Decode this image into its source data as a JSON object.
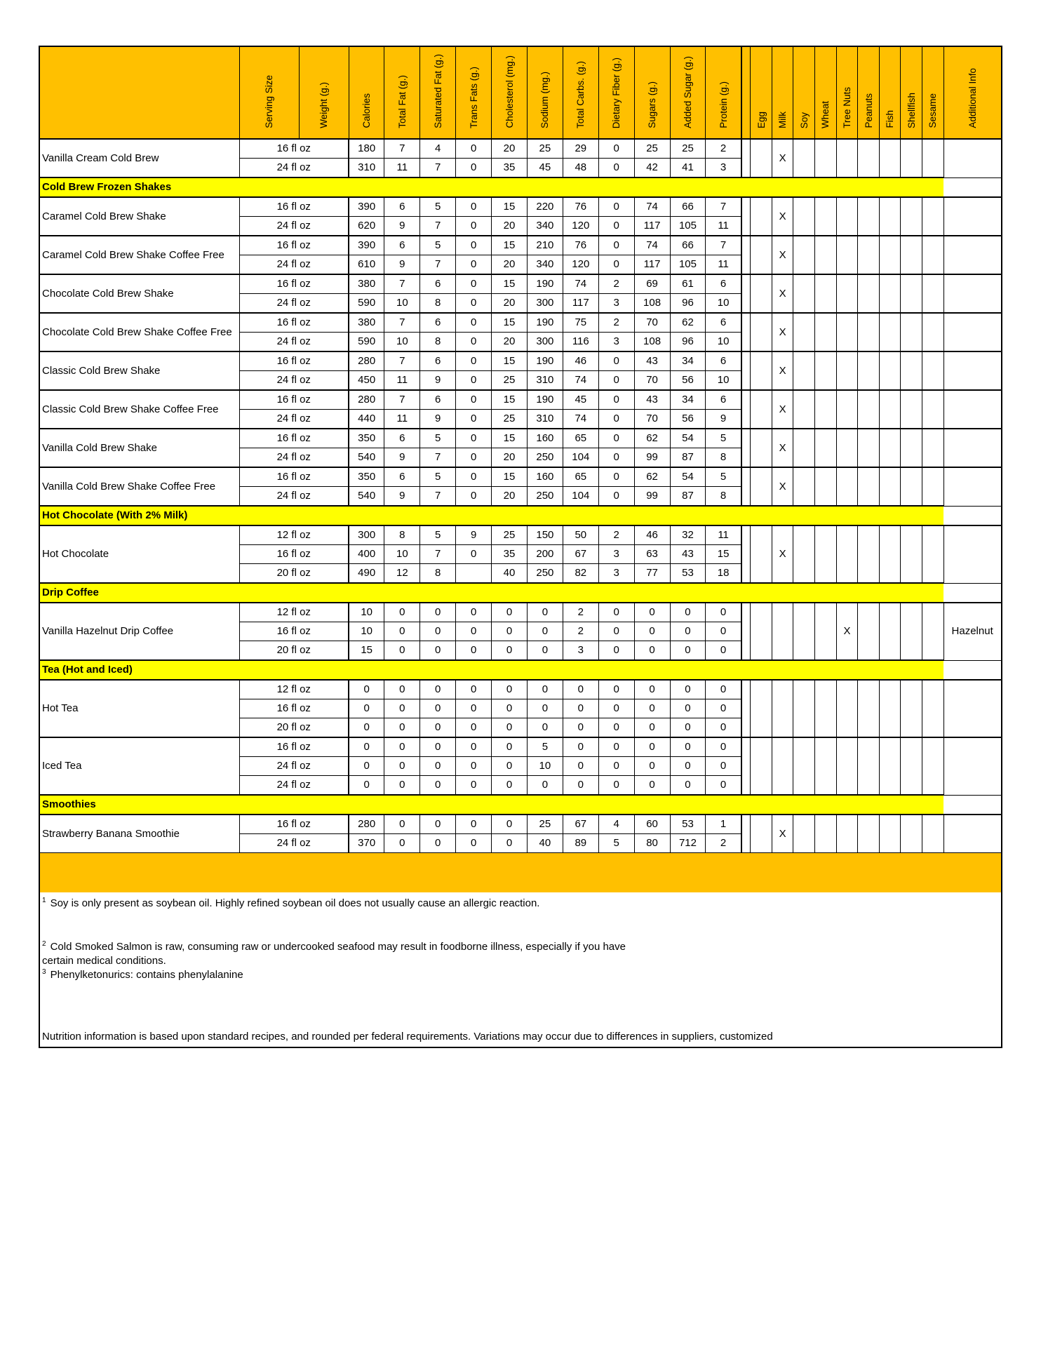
{
  "columns": {
    "name": "",
    "serving_size": "Serving Size",
    "weight": "Weight (g.)",
    "nutrients": [
      "Calories",
      "Total Fat (g.)",
      "Saturated Fat (g.)",
      "Trans Fats (g.)",
      "Cholesterol (mg.)",
      "Sodium (mg.)",
      "Total Carbs. (g.)",
      "Dietary Fiber (g.)",
      "Sugars (g.)",
      "Added Sugar (g.)",
      "Protein (g.)"
    ],
    "allergens": [
      "Egg",
      "Milk",
      "Soy",
      "Wheat",
      "Tree Nuts",
      "Peanuts",
      "Fish",
      "Shellfish",
      "Sesame"
    ],
    "additional": "Additional Info"
  },
  "sections": [
    {
      "title": "",
      "items": [
        {
          "name": "Vanilla Cream Cold Brew",
          "allergens": [
            "",
            "X",
            "",
            "",
            "",
            "",
            "",
            "",
            ""
          ],
          "additional": "",
          "rows": [
            {
              "size": "16 fl oz",
              "values": [
                "180",
                "7",
                "4",
                "0",
                "20",
                "25",
                "29",
                "0",
                "25",
                "25",
                "2"
              ]
            },
            {
              "size": "24 fl oz",
              "values": [
                "310",
                "11",
                "7",
                "0",
                "35",
                "45",
                "48",
                "0",
                "42",
                "41",
                "3"
              ]
            }
          ]
        }
      ]
    },
    {
      "title": "Cold Brew Frozen Shakes",
      "items": [
        {
          "name": "Caramel Cold Brew Shake",
          "allergens": [
            "",
            "X",
            "",
            "",
            "",
            "",
            "",
            "",
            ""
          ],
          "additional": "",
          "rows": [
            {
              "size": "16 fl oz",
              "values": [
                "390",
                "6",
                "5",
                "0",
                "15",
                "220",
                "76",
                "0",
                "74",
                "66",
                "7"
              ]
            },
            {
              "size": "24 fl oz",
              "values": [
                "620",
                "9",
                "7",
                "0",
                "20",
                "340",
                "120",
                "0",
                "117",
                "105",
                "11"
              ]
            }
          ]
        },
        {
          "name": "Caramel Cold Brew Shake Coffee Free",
          "allergens": [
            "",
            "X",
            "",
            "",
            "",
            "",
            "",
            "",
            ""
          ],
          "additional": "",
          "rows": [
            {
              "size": "16 fl oz",
              "values": [
                "390",
                "6",
                "5",
                "0",
                "15",
                "210",
                "76",
                "0",
                "74",
                "66",
                "7"
              ]
            },
            {
              "size": "24 fl oz",
              "values": [
                "610",
                "9",
                "7",
                "0",
                "20",
                "340",
                "120",
                "0",
                "117",
                "105",
                "11"
              ]
            }
          ]
        },
        {
          "name": "Chocolate Cold Brew Shake",
          "allergens": [
            "",
            "X",
            "",
            "",
            "",
            "",
            "",
            "",
            ""
          ],
          "additional": "",
          "rows": [
            {
              "size": "16 fl oz",
              "values": [
                "380",
                "7",
                "6",
                "0",
                "15",
                "190",
                "74",
                "2",
                "69",
                "61",
                "6"
              ]
            },
            {
              "size": "24 fl oz",
              "values": [
                "590",
                "10",
                "8",
                "0",
                "20",
                "300",
                "117",
                "3",
                "108",
                "96",
                "10"
              ]
            }
          ]
        },
        {
          "name": "Chocolate Cold Brew Shake Coffee Free",
          "allergens": [
            "",
            "X",
            "",
            "",
            "",
            "",
            "",
            "",
            ""
          ],
          "additional": "",
          "rows": [
            {
              "size": "16 fl oz",
              "values": [
                "380",
                "7",
                "6",
                "0",
                "15",
                "190",
                "75",
                "2",
                "70",
                "62",
                "6"
              ]
            },
            {
              "size": "24 fl oz",
              "values": [
                "590",
                "10",
                "8",
                "0",
                "20",
                "300",
                "116",
                "3",
                "108",
                "96",
                "10"
              ]
            }
          ]
        },
        {
          "name": "Classic Cold Brew Shake",
          "allergens": [
            "",
            "X",
            "",
            "",
            "",
            "",
            "",
            "",
            ""
          ],
          "additional": "",
          "rows": [
            {
              "size": "16 fl oz",
              "values": [
                "280",
                "7",
                "6",
                "0",
                "15",
                "190",
                "46",
                "0",
                "43",
                "34",
                "6"
              ]
            },
            {
              "size": "24 fl oz",
              "values": [
                "450",
                "11",
                "9",
                "0",
                "25",
                "310",
                "74",
                "0",
                "70",
                "56",
                "10"
              ]
            }
          ]
        },
        {
          "name": "Classic Cold Brew Shake Coffee Free",
          "allergens": [
            "",
            "X",
            "",
            "",
            "",
            "",
            "",
            "",
            ""
          ],
          "additional": "",
          "rows": [
            {
              "size": "16 fl oz",
              "values": [
                "280",
                "7",
                "6",
                "0",
                "15",
                "190",
                "45",
                "0",
                "43",
                "34",
                "6"
              ]
            },
            {
              "size": "24 fl oz",
              "values": [
                "440",
                "11",
                "9",
                "0",
                "25",
                "310",
                "74",
                "0",
                "70",
                "56",
                "9"
              ]
            }
          ]
        },
        {
          "name": "Vanilla Cold Brew Shake",
          "allergens": [
            "",
            "X",
            "",
            "",
            "",
            "",
            "",
            "",
            ""
          ],
          "additional": "",
          "rows": [
            {
              "size": "16 fl oz",
              "values": [
                "350",
                "6",
                "5",
                "0",
                "15",
                "160",
                "65",
                "0",
                "62",
                "54",
                "5"
              ]
            },
            {
              "size": "24 fl oz",
              "values": [
                "540",
                "9",
                "7",
                "0",
                "20",
                "250",
                "104",
                "0",
                "99",
                "87",
                "8"
              ]
            }
          ]
        },
        {
          "name": "Vanilla Cold Brew Shake Coffee Free",
          "allergens": [
            "",
            "X",
            "",
            "",
            "",
            "",
            "",
            "",
            ""
          ],
          "additional": "",
          "rows": [
            {
              "size": "16 fl oz",
              "values": [
                "350",
                "6",
                "5",
                "0",
                "15",
                "160",
                "65",
                "0",
                "62",
                "54",
                "5"
              ]
            },
            {
              "size": "24 fl oz",
              "values": [
                "540",
                "9",
                "7",
                "0",
                "20",
                "250",
                "104",
                "0",
                "99",
                "87",
                "8"
              ]
            }
          ]
        }
      ]
    },
    {
      "title": "Hot Chocolate (With 2% Milk)",
      "items": [
        {
          "name": "Hot Chocolate",
          "allergens": [
            "",
            "X",
            "",
            "",
            "",
            "",
            "",
            "",
            ""
          ],
          "additional": "",
          "rows": [
            {
              "size": "12 fl oz",
              "values": [
                "300",
                "8",
                "5",
                "9",
                "25",
                "150",
                "50",
                "2",
                "46",
                "32",
                "11"
              ]
            },
            {
              "size": "16 fl oz",
              "values": [
                "400",
                "10",
                "7",
                "0",
                "35",
                "200",
                "67",
                "3",
                "63",
                "43",
                "15"
              ]
            },
            {
              "size": "20 fl oz",
              "values": [
                "490",
                "12",
                "8",
                "",
                "40",
                "250",
                "82",
                "3",
                "77",
                "53",
                "18"
              ]
            }
          ]
        }
      ]
    },
    {
      "title": "Drip Coffee",
      "items": [
        {
          "name": "Vanilla Hazelnut Drip Coffee",
          "allergens": [
            "",
            "",
            "",
            "",
            "X",
            "",
            "",
            "",
            ""
          ],
          "additional": "Hazelnut",
          "rows": [
            {
              "size": "12 fl oz",
              "values": [
                "10",
                "0",
                "0",
                "0",
                "0",
                "0",
                "2",
                "0",
                "0",
                "0",
                "0"
              ]
            },
            {
              "size": "16 fl oz",
              "values": [
                "10",
                "0",
                "0",
                "0",
                "0",
                "0",
                "2",
                "0",
                "0",
                "0",
                "0"
              ]
            },
            {
              "size": "20 fl oz",
              "values": [
                "15",
                "0",
                "0",
                "0",
                "0",
                "0",
                "3",
                "0",
                "0",
                "0",
                "0"
              ]
            }
          ]
        }
      ]
    },
    {
      "title": "Tea (Hot and Iced)",
      "items": [
        {
          "name": "Hot Tea",
          "allergens": [
            "",
            "",
            "",
            "",
            "",
            "",
            "",
            "",
            ""
          ],
          "additional": "",
          "rows": [
            {
              "size": "12 fl oz",
              "values": [
                "0",
                "0",
                "0",
                "0",
                "0",
                "0",
                "0",
                "0",
                "0",
                "0",
                "0"
              ]
            },
            {
              "size": "16 fl oz",
              "values": [
                "0",
                "0",
                "0",
                "0",
                "0",
                "0",
                "0",
                "0",
                "0",
                "0",
                "0"
              ]
            },
            {
              "size": "20 fl oz",
              "values": [
                "0",
                "0",
                "0",
                "0",
                "0",
                "0",
                "0",
                "0",
                "0",
                "0",
                "0"
              ]
            }
          ]
        },
        {
          "name": "Iced Tea",
          "allergens": [
            "",
            "",
            "",
            "",
            "",
            "",
            "",
            "",
            ""
          ],
          "additional": "",
          "rows": [
            {
              "size": "16 fl oz",
              "values": [
                "0",
                "0",
                "0",
                "0",
                "0",
                "5",
                "0",
                "0",
                "0",
                "0",
                "0"
              ]
            },
            {
              "size": "24 fl oz",
              "values": [
                "0",
                "0",
                "0",
                "0",
                "0",
                "10",
                "0",
                "0",
                "0",
                "0",
                "0"
              ]
            },
            {
              "size": "24 fl oz",
              "values": [
                "0",
                "0",
                "0",
                "0",
                "0",
                "0",
                "0",
                "0",
                "0",
                "0",
                "0"
              ]
            }
          ]
        }
      ]
    },
    {
      "title": "Smoothies",
      "items": [
        {
          "name": "Strawberry Banana Smoothie",
          "allergens": [
            "",
            "X",
            "",
            "",
            "",
            "",
            "",
            "",
            ""
          ],
          "additional": "",
          "rows": [
            {
              "size": "16 fl oz",
              "values": [
                "280",
                "0",
                "0",
                "0",
                "0",
                "25",
                "67",
                "4",
                "60",
                "53",
                "1"
              ]
            },
            {
              "size": "24 fl oz",
              "values": [
                "370",
                "0",
                "0",
                "0",
                "0",
                "40",
                "89",
                "5",
                "80",
                "712",
                "2"
              ]
            }
          ]
        }
      ]
    }
  ],
  "footnotes": [
    {
      "mark": "1",
      "text": "Soy is only present as soybean oil.  Highly refined soybean oil does not usually cause an allergic reaction."
    },
    {
      "mark": "2",
      "text": "Cold Smoked Salmon is raw, consuming raw or undercooked seafood may result in foodborne illness, especially if you have",
      "continuation": "certain medical conditions."
    },
    {
      "mark": "3",
      "text": "Phenylketonurics: contains phenylalanine"
    }
  ],
  "disclaimer": "Nutrition information is based upon standard recipes, and rounded per federal requirements. Variations may occur due to differences in suppliers, customized",
  "colors": {
    "header": "#FFC000",
    "section": "#FFFF00"
  }
}
